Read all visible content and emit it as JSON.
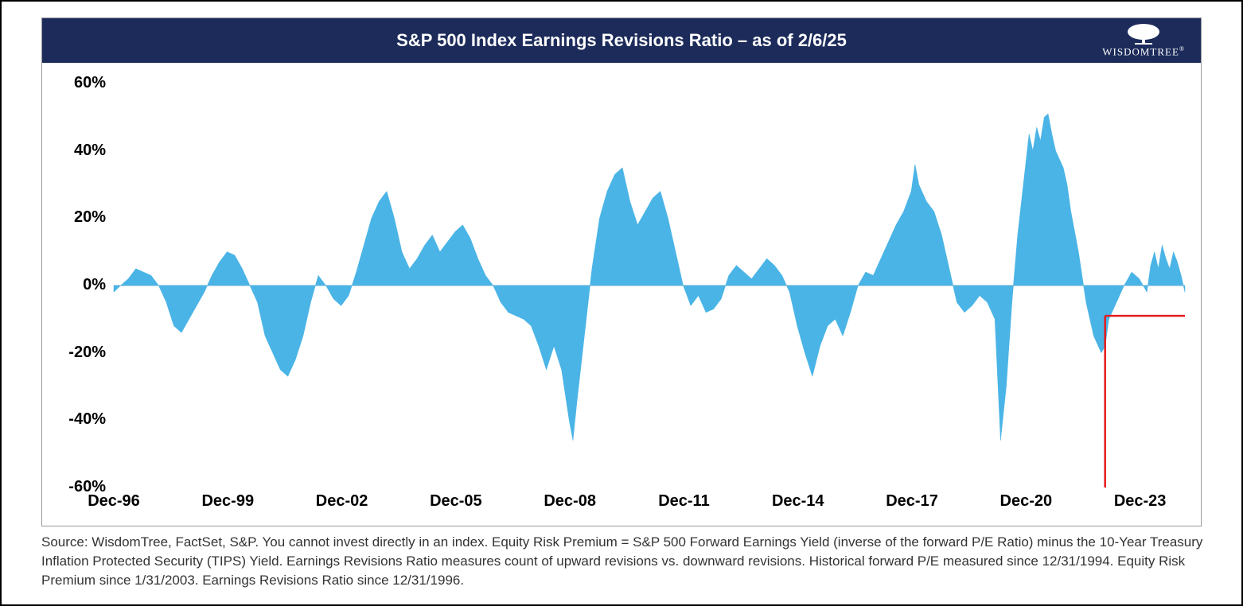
{
  "chart": {
    "type": "area",
    "title": "S&P 500 Index Earnings Revisions Ratio – as of 2/6/25",
    "title_bg": "#1c2b5a",
    "title_color": "#ffffff",
    "title_fontsize": 22,
    "title_fontweight": 700,
    "logo_text": "WISDOMTREE",
    "fill_color": "#4ab4e6",
    "line_color": "#4ab4e6",
    "background_color": "#ffffff",
    "zero_line_color": "#d0d0d0",
    "ylim": [
      -60,
      60
    ],
    "yticks": [
      -60,
      -40,
      -20,
      0,
      20,
      40,
      60
    ],
    "ytick_labels": [
      "-60%",
      "-40%",
      "-20%",
      "0%",
      "20%",
      "40%",
      "60%"
    ],
    "ytick_fontsize": 20,
    "ytick_fontweight": 700,
    "xtick_labels": [
      "Dec-96",
      "Dec-99",
      "Dec-02",
      "Dec-05",
      "Dec-08",
      "Dec-11",
      "Dec-14",
      "Dec-17",
      "Dec-20",
      "Dec-23"
    ],
    "xtick_years": [
      1996.92,
      1999.92,
      2002.92,
      2005.92,
      2008.92,
      2011.92,
      2014.92,
      2017.92,
      2020.92,
      2023.92
    ],
    "xtick_fontsize": 20,
    "xtick_fontweight": 700,
    "x_start": 1996.92,
    "x_end": 2025.1,
    "marker": {
      "color": "#e41a1c",
      "width": 2.5,
      "x": 2023.0,
      "y_level": -9,
      "x_end": 2025.1
    },
    "series": [
      [
        1996.92,
        -2
      ],
      [
        1997.1,
        0
      ],
      [
        1997.3,
        2
      ],
      [
        1997.5,
        5
      ],
      [
        1997.7,
        4
      ],
      [
        1997.9,
        3
      ],
      [
        1998.1,
        0
      ],
      [
        1998.3,
        -5
      ],
      [
        1998.5,
        -12
      ],
      [
        1998.7,
        -14
      ],
      [
        1998.9,
        -10
      ],
      [
        1999.1,
        -6
      ],
      [
        1999.3,
        -2
      ],
      [
        1999.5,
        3
      ],
      [
        1999.7,
        7
      ],
      [
        1999.9,
        10
      ],
      [
        2000.1,
        9
      ],
      [
        2000.3,
        5
      ],
      [
        2000.5,
        0
      ],
      [
        2000.7,
        -5
      ],
      [
        2000.9,
        -15
      ],
      [
        2001.1,
        -20
      ],
      [
        2001.3,
        -25
      ],
      [
        2001.5,
        -27
      ],
      [
        2001.7,
        -22
      ],
      [
        2001.9,
        -15
      ],
      [
        2002.1,
        -5
      ],
      [
        2002.3,
        3
      ],
      [
        2002.5,
        0
      ],
      [
        2002.7,
        -4
      ],
      [
        2002.9,
        -6
      ],
      [
        2003.1,
        -3
      ],
      [
        2003.3,
        4
      ],
      [
        2003.5,
        12
      ],
      [
        2003.7,
        20
      ],
      [
        2003.9,
        25
      ],
      [
        2004.1,
        28
      ],
      [
        2004.3,
        20
      ],
      [
        2004.5,
        10
      ],
      [
        2004.7,
        5
      ],
      [
        2004.9,
        8
      ],
      [
        2005.1,
        12
      ],
      [
        2005.3,
        15
      ],
      [
        2005.5,
        10
      ],
      [
        2005.7,
        13
      ],
      [
        2005.9,
        16
      ],
      [
        2006.1,
        18
      ],
      [
        2006.3,
        14
      ],
      [
        2006.5,
        8
      ],
      [
        2006.7,
        3
      ],
      [
        2006.9,
        0
      ],
      [
        2007.1,
        -5
      ],
      [
        2007.3,
        -8
      ],
      [
        2007.5,
        -9
      ],
      [
        2007.7,
        -10
      ],
      [
        2007.9,
        -12
      ],
      [
        2008.1,
        -18
      ],
      [
        2008.3,
        -25
      ],
      [
        2008.5,
        -18
      ],
      [
        2008.7,
        -25
      ],
      [
        2008.9,
        -40
      ],
      [
        2009.0,
        -46
      ],
      [
        2009.1,
        -35
      ],
      [
        2009.3,
        -15
      ],
      [
        2009.5,
        5
      ],
      [
        2009.7,
        20
      ],
      [
        2009.9,
        28
      ],
      [
        2010.1,
        33
      ],
      [
        2010.3,
        35
      ],
      [
        2010.5,
        25
      ],
      [
        2010.7,
        18
      ],
      [
        2010.9,
        22
      ],
      [
        2011.1,
        26
      ],
      [
        2011.3,
        28
      ],
      [
        2011.5,
        20
      ],
      [
        2011.7,
        10
      ],
      [
        2011.9,
        0
      ],
      [
        2012.1,
        -6
      ],
      [
        2012.3,
        -3
      ],
      [
        2012.5,
        -8
      ],
      [
        2012.7,
        -7
      ],
      [
        2012.9,
        -4
      ],
      [
        2013.1,
        3
      ],
      [
        2013.3,
        6
      ],
      [
        2013.5,
        4
      ],
      [
        2013.7,
        2
      ],
      [
        2013.9,
        5
      ],
      [
        2014.1,
        8
      ],
      [
        2014.3,
        6
      ],
      [
        2014.5,
        3
      ],
      [
        2014.7,
        -2
      ],
      [
        2014.9,
        -12
      ],
      [
        2015.1,
        -20
      ],
      [
        2015.3,
        -27
      ],
      [
        2015.5,
        -18
      ],
      [
        2015.7,
        -12
      ],
      [
        2015.9,
        -10
      ],
      [
        2016.1,
        -15
      ],
      [
        2016.3,
        -8
      ],
      [
        2016.5,
        0
      ],
      [
        2016.7,
        4
      ],
      [
        2016.9,
        3
      ],
      [
        2017.1,
        8
      ],
      [
        2017.3,
        13
      ],
      [
        2017.5,
        18
      ],
      [
        2017.7,
        22
      ],
      [
        2017.9,
        28
      ],
      [
        2018.0,
        36
      ],
      [
        2018.1,
        30
      ],
      [
        2018.3,
        25
      ],
      [
        2018.5,
        22
      ],
      [
        2018.7,
        15
      ],
      [
        2018.9,
        5
      ],
      [
        2019.1,
        -5
      ],
      [
        2019.3,
        -8
      ],
      [
        2019.5,
        -6
      ],
      [
        2019.7,
        -3
      ],
      [
        2019.9,
        -5
      ],
      [
        2020.1,
        -10
      ],
      [
        2020.25,
        -46
      ],
      [
        2020.4,
        -30
      ],
      [
        2020.55,
        -5
      ],
      [
        2020.7,
        15
      ],
      [
        2020.9,
        35
      ],
      [
        2021.0,
        45
      ],
      [
        2021.1,
        40
      ],
      [
        2021.2,
        47
      ],
      [
        2021.3,
        43
      ],
      [
        2021.4,
        50
      ],
      [
        2021.5,
        51
      ],
      [
        2021.6,
        45
      ],
      [
        2021.7,
        40
      ],
      [
        2021.9,
        35
      ],
      [
        2022.0,
        30
      ],
      [
        2022.1,
        22
      ],
      [
        2022.3,
        10
      ],
      [
        2022.5,
        -5
      ],
      [
        2022.7,
        -15
      ],
      [
        2022.9,
        -20
      ],
      [
        2023.0,
        -18
      ],
      [
        2023.1,
        -10
      ],
      [
        2023.3,
        -5
      ],
      [
        2023.5,
        0
      ],
      [
        2023.7,
        4
      ],
      [
        2023.9,
        2
      ],
      [
        2024.1,
        -2
      ],
      [
        2024.2,
        6
      ],
      [
        2024.3,
        10
      ],
      [
        2024.4,
        5
      ],
      [
        2024.5,
        12
      ],
      [
        2024.6,
        8
      ],
      [
        2024.7,
        5
      ],
      [
        2024.8,
        10
      ],
      [
        2024.9,
        7
      ],
      [
        2025.0,
        3
      ],
      [
        2025.1,
        -2
      ]
    ]
  },
  "footnote": "Source: WisdomTree, FactSet, S&P. You cannot invest directly in an index. Equity Risk Premium = S&P 500 Forward Earnings Yield (inverse of the forward P/E Ratio) minus the 10-Year Treasury Inflation Protected Security (TIPS) Yield. Earnings Revisions Ratio measures count of upward revisions vs. downward revisions. Historical forward P/E measured since 12/31/1994. Equity Risk Premium since 1/31/2003. Earnings Revisions Ratio since 12/31/1996."
}
